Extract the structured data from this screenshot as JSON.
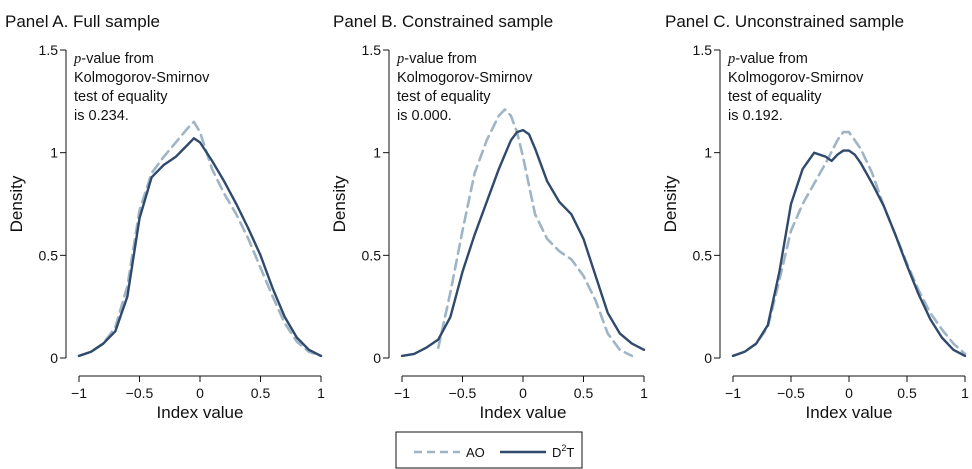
{
  "chart_data": [
    {
      "type": "line",
      "title": "Panel A. Full sample",
      "xlabel": "Index value",
      "ylabel": "Density",
      "xlim": [
        -1,
        1
      ],
      "ylim": [
        0,
        1.5
      ],
      "xticks": [
        -1,
        -0.5,
        0,
        0.5,
        1
      ],
      "xtick_labels": [
        "−1",
        "−0.5",
        "0",
        "0.5",
        "1"
      ],
      "yticks": [
        0,
        0.5,
        1,
        1.5
      ],
      "ytick_labels": [
        "0",
        "0.5",
        "1",
        "1.5"
      ],
      "annotation": {
        "p": "p",
        "line1_rest": "-value from",
        "line2": "Kolmogorov-Smirnov",
        "line3": "test of equality",
        "line4": "is 0.234."
      },
      "series": [
        {
          "name": "AO",
          "style": "dashed",
          "color": "#9fb5c6",
          "x": [
            -1.0,
            -0.9,
            -0.8,
            -0.7,
            -0.6,
            -0.5,
            -0.4,
            -0.3,
            -0.2,
            -0.1,
            -0.05,
            0.0,
            0.1,
            0.2,
            0.3,
            0.4,
            0.5,
            0.6,
            0.7,
            0.8,
            0.9,
            1.0
          ],
          "y": [
            0.01,
            0.03,
            0.07,
            0.15,
            0.35,
            0.72,
            0.9,
            0.98,
            1.05,
            1.12,
            1.15,
            1.1,
            0.92,
            0.8,
            0.7,
            0.58,
            0.44,
            0.3,
            0.17,
            0.08,
            0.03,
            0.01
          ]
        },
        {
          "name": "D²T",
          "style": "solid",
          "color": "#2f4a6c",
          "x": [
            -1.0,
            -0.9,
            -0.8,
            -0.7,
            -0.6,
            -0.5,
            -0.4,
            -0.3,
            -0.2,
            -0.1,
            -0.05,
            0.0,
            0.1,
            0.2,
            0.3,
            0.4,
            0.5,
            0.6,
            0.7,
            0.8,
            0.9,
            1.0
          ],
          "y": [
            0.01,
            0.03,
            0.07,
            0.13,
            0.3,
            0.68,
            0.88,
            0.94,
            0.98,
            1.04,
            1.07,
            1.05,
            0.96,
            0.86,
            0.75,
            0.63,
            0.5,
            0.34,
            0.2,
            0.1,
            0.04,
            0.01
          ]
        }
      ]
    },
    {
      "type": "line",
      "title": "Panel B. Constrained sample",
      "xlabel": "Index value",
      "ylabel": "Density",
      "xlim": [
        -1,
        1
      ],
      "ylim": [
        0,
        1.5
      ],
      "xticks": [
        -1,
        -0.5,
        0,
        0.5,
        1
      ],
      "xtick_labels": [
        "−1",
        "−0.5",
        "0",
        "0.5",
        "1"
      ],
      "yticks": [
        0,
        0.5,
        1,
        1.5
      ],
      "ytick_labels": [
        "0",
        "0.5",
        "1",
        "1.5"
      ],
      "annotation": {
        "p": "p",
        "line1_rest": "-value from",
        "line2": "Kolmogorov-Smirnov",
        "line3": "test of equality",
        "line4": "is 0.000."
      },
      "series": [
        {
          "name": "AO",
          "style": "dashed",
          "color": "#9fb5c6",
          "x": [
            -0.7,
            -0.6,
            -0.5,
            -0.4,
            -0.3,
            -0.2,
            -0.15,
            -0.1,
            -0.05,
            0.0,
            0.1,
            0.2,
            0.3,
            0.4,
            0.5,
            0.6,
            0.7,
            0.8,
            0.9
          ],
          "y": [
            0.05,
            0.32,
            0.62,
            0.9,
            1.06,
            1.18,
            1.21,
            1.18,
            1.1,
            0.98,
            0.7,
            0.58,
            0.52,
            0.48,
            0.4,
            0.28,
            0.12,
            0.04,
            0.01
          ]
        },
        {
          "name": "D²T",
          "style": "solid",
          "color": "#2f4a6c",
          "x": [
            -1.0,
            -0.9,
            -0.8,
            -0.7,
            -0.6,
            -0.5,
            -0.4,
            -0.3,
            -0.2,
            -0.1,
            -0.05,
            0.0,
            0.05,
            0.1,
            0.2,
            0.3,
            0.4,
            0.5,
            0.6,
            0.7,
            0.8,
            0.9,
            1.0
          ],
          "y": [
            0.01,
            0.02,
            0.05,
            0.09,
            0.2,
            0.42,
            0.6,
            0.76,
            0.92,
            1.06,
            1.1,
            1.11,
            1.09,
            1.02,
            0.86,
            0.76,
            0.7,
            0.58,
            0.4,
            0.22,
            0.12,
            0.07,
            0.04
          ]
        }
      ]
    },
    {
      "type": "line",
      "title": "Panel C. Unconstrained sample",
      "xlabel": "Index value",
      "ylabel": "Density",
      "xlim": [
        -1,
        1
      ],
      "ylim": [
        0,
        1.5
      ],
      "xticks": [
        -1,
        -0.5,
        0,
        0.5,
        1
      ],
      "xtick_labels": [
        "−1",
        "−0.5",
        "0",
        "0.5",
        "1"
      ],
      "yticks": [
        0,
        0.5,
        1,
        1.5
      ],
      "ytick_labels": [
        "0",
        "0.5",
        "1",
        "1.5"
      ],
      "annotation": {
        "p": "p",
        "line1_rest": "-value from",
        "line2": "Kolmogorov-Smirnov",
        "line3": "test of equality",
        "line4": "is 0.192."
      },
      "series": [
        {
          "name": "AO",
          "style": "dashed",
          "color": "#9fb5c6",
          "x": [
            -1.0,
            -0.9,
            -0.8,
            -0.7,
            -0.6,
            -0.5,
            -0.4,
            -0.3,
            -0.2,
            -0.1,
            -0.05,
            0.0,
            0.1,
            0.2,
            0.3,
            0.4,
            0.5,
            0.6,
            0.7,
            0.8,
            0.9,
            1.0
          ],
          "y": [
            0.01,
            0.03,
            0.07,
            0.15,
            0.38,
            0.62,
            0.75,
            0.85,
            0.95,
            1.06,
            1.1,
            1.1,
            1.02,
            0.9,
            0.74,
            0.6,
            0.46,
            0.33,
            0.22,
            0.14,
            0.07,
            0.02
          ]
        },
        {
          "name": "D²T",
          "style": "solid",
          "color": "#2f4a6c",
          "x": [
            -1.0,
            -0.9,
            -0.8,
            -0.7,
            -0.6,
            -0.5,
            -0.4,
            -0.3,
            -0.2,
            -0.15,
            -0.1,
            -0.05,
            0.0,
            0.05,
            0.1,
            0.2,
            0.3,
            0.4,
            0.5,
            0.6,
            0.7,
            0.8,
            0.9,
            1.0
          ],
          "y": [
            0.01,
            0.03,
            0.07,
            0.16,
            0.42,
            0.75,
            0.92,
            1.0,
            0.98,
            0.96,
            0.99,
            1.01,
            1.01,
            0.99,
            0.95,
            0.85,
            0.74,
            0.6,
            0.45,
            0.31,
            0.19,
            0.1,
            0.04,
            0.01
          ]
        }
      ]
    }
  ],
  "legend": {
    "placement": "bottom-center",
    "items": [
      {
        "label": "AO",
        "style": "dashed",
        "color": "#9fb5c6"
      },
      {
        "label": "D",
        "sup": "2",
        "suffix": "T",
        "style": "solid",
        "color": "#2f4a6c"
      }
    ]
  }
}
